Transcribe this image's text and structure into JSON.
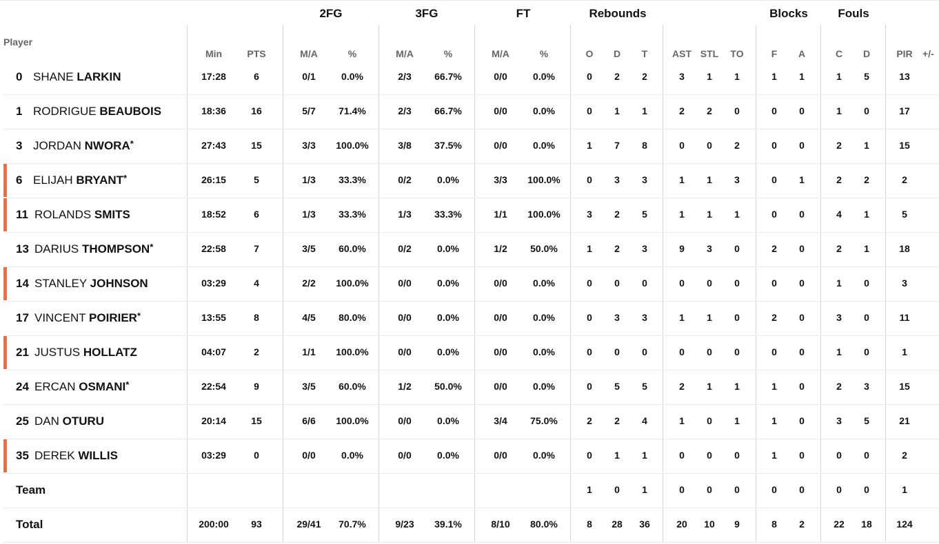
{
  "header": {
    "groups": {
      "twofg": "2FG",
      "threefg": "3FG",
      "ft": "FT",
      "rebounds": "Rebounds",
      "blocks": "Blocks",
      "fouls": "Fouls"
    },
    "player": "Player",
    "cols": {
      "min": "Min",
      "pts": "PTS",
      "twofg_ma": "M/A",
      "twofg_pct": "%",
      "threefg_ma": "M/A",
      "threefg_pct": "%",
      "ft_ma": "M/A",
      "ft_pct": "%",
      "reb_o": "O",
      "reb_d": "D",
      "reb_t": "T",
      "ast": "AST",
      "stl": "STL",
      "to": "TO",
      "blk_f": "F",
      "blk_a": "A",
      "foul_c": "C",
      "foul_d": "D",
      "pir": "PIR",
      "pm": "+/-"
    }
  },
  "accent_color": "#f26b38",
  "players": [
    {
      "num": "0",
      "first": "SHANE",
      "last": "LARKIN",
      "star": "",
      "flag": false,
      "min": "17:28",
      "pts": "6",
      "twofg_ma": "0/1",
      "twofg_pct": "0.0%",
      "threefg_ma": "2/3",
      "threefg_pct": "66.7%",
      "ft_ma": "0/0",
      "ft_pct": "0.0%",
      "reb_o": "0",
      "reb_d": "2",
      "reb_t": "2",
      "ast": "3",
      "stl": "1",
      "to": "1",
      "blk_f": "1",
      "blk_a": "1",
      "foul_c": "1",
      "foul_d": "5",
      "pir": "13"
    },
    {
      "num": "1",
      "first": "RODRIGUE",
      "last": "BEAUBOIS",
      "star": "",
      "flag": false,
      "min": "18:36",
      "pts": "16",
      "twofg_ma": "5/7",
      "twofg_pct": "71.4%",
      "threefg_ma": "2/3",
      "threefg_pct": "66.7%",
      "ft_ma": "0/0",
      "ft_pct": "0.0%",
      "reb_o": "0",
      "reb_d": "1",
      "reb_t": "1",
      "ast": "2",
      "stl": "2",
      "to": "0",
      "blk_f": "0",
      "blk_a": "0",
      "foul_c": "1",
      "foul_d": "0",
      "pir": "17"
    },
    {
      "num": "3",
      "first": "JORDAN",
      "last": "NWORA",
      "star": "*",
      "flag": false,
      "min": "27:43",
      "pts": "15",
      "twofg_ma": "3/3",
      "twofg_pct": "100.0%",
      "threefg_ma": "3/8",
      "threefg_pct": "37.5%",
      "ft_ma": "0/0",
      "ft_pct": "0.0%",
      "reb_o": "1",
      "reb_d": "7",
      "reb_t": "8",
      "ast": "0",
      "stl": "0",
      "to": "2",
      "blk_f": "0",
      "blk_a": "0",
      "foul_c": "2",
      "foul_d": "1",
      "pir": "15"
    },
    {
      "num": "6",
      "first": "ELIJAH",
      "last": "BRYANT",
      "star": "*",
      "flag": true,
      "min": "26:15",
      "pts": "5",
      "twofg_ma": "1/3",
      "twofg_pct": "33.3%",
      "threefg_ma": "0/2",
      "threefg_pct": "0.0%",
      "ft_ma": "3/3",
      "ft_pct": "100.0%",
      "reb_o": "0",
      "reb_d": "3",
      "reb_t": "3",
      "ast": "1",
      "stl": "1",
      "to": "3",
      "blk_f": "0",
      "blk_a": "1",
      "foul_c": "2",
      "foul_d": "2",
      "pir": "2"
    },
    {
      "num": "11",
      "first": "ROLANDS",
      "last": "SMITS",
      "star": "",
      "flag": true,
      "min": "18:52",
      "pts": "6",
      "twofg_ma": "1/3",
      "twofg_pct": "33.3%",
      "threefg_ma": "1/3",
      "threefg_pct": "33.3%",
      "ft_ma": "1/1",
      "ft_pct": "100.0%",
      "reb_o": "3",
      "reb_d": "2",
      "reb_t": "5",
      "ast": "1",
      "stl": "1",
      "to": "1",
      "blk_f": "0",
      "blk_a": "0",
      "foul_c": "4",
      "foul_d": "1",
      "pir": "5"
    },
    {
      "num": "13",
      "first": "DARIUS",
      "last": "THOMPSON",
      "star": "*",
      "flag": false,
      "min": "22:58",
      "pts": "7",
      "twofg_ma": "3/5",
      "twofg_pct": "60.0%",
      "threefg_ma": "0/2",
      "threefg_pct": "0.0%",
      "ft_ma": "1/2",
      "ft_pct": "50.0%",
      "reb_o": "1",
      "reb_d": "2",
      "reb_t": "3",
      "ast": "9",
      "stl": "3",
      "to": "0",
      "blk_f": "2",
      "blk_a": "0",
      "foul_c": "2",
      "foul_d": "1",
      "pir": "18"
    },
    {
      "num": "14",
      "first": "STANLEY",
      "last": "JOHNSON",
      "star": "",
      "flag": true,
      "min": "03:29",
      "pts": "4",
      "twofg_ma": "2/2",
      "twofg_pct": "100.0%",
      "threefg_ma": "0/0",
      "threefg_pct": "0.0%",
      "ft_ma": "0/0",
      "ft_pct": "0.0%",
      "reb_o": "0",
      "reb_d": "0",
      "reb_t": "0",
      "ast": "0",
      "stl": "0",
      "to": "0",
      "blk_f": "0",
      "blk_a": "0",
      "foul_c": "1",
      "foul_d": "0",
      "pir": "3"
    },
    {
      "num": "17",
      "first": "VINCENT",
      "last": "POIRIER",
      "star": "*",
      "flag": false,
      "min": "13:55",
      "pts": "8",
      "twofg_ma": "4/5",
      "twofg_pct": "80.0%",
      "threefg_ma": "0/0",
      "threefg_pct": "0.0%",
      "ft_ma": "0/0",
      "ft_pct": "0.0%",
      "reb_o": "0",
      "reb_d": "3",
      "reb_t": "3",
      "ast": "1",
      "stl": "1",
      "to": "0",
      "blk_f": "2",
      "blk_a": "0",
      "foul_c": "3",
      "foul_d": "0",
      "pir": "11"
    },
    {
      "num": "21",
      "first": "JUSTUS",
      "last": "HOLLATZ",
      "star": "",
      "flag": true,
      "min": "04:07",
      "pts": "2",
      "twofg_ma": "1/1",
      "twofg_pct": "100.0%",
      "threefg_ma": "0/0",
      "threefg_pct": "0.0%",
      "ft_ma": "0/0",
      "ft_pct": "0.0%",
      "reb_o": "0",
      "reb_d": "0",
      "reb_t": "0",
      "ast": "0",
      "stl": "0",
      "to": "0",
      "blk_f": "0",
      "blk_a": "0",
      "foul_c": "1",
      "foul_d": "0",
      "pir": "1"
    },
    {
      "num": "24",
      "first": "ERCAN",
      "last": "OSMANI",
      "star": "*",
      "flag": false,
      "min": "22:54",
      "pts": "9",
      "twofg_ma": "3/5",
      "twofg_pct": "60.0%",
      "threefg_ma": "1/2",
      "threefg_pct": "50.0%",
      "ft_ma": "0/0",
      "ft_pct": "0.0%",
      "reb_o": "0",
      "reb_d": "5",
      "reb_t": "5",
      "ast": "2",
      "stl": "1",
      "to": "1",
      "blk_f": "1",
      "blk_a": "0",
      "foul_c": "2",
      "foul_d": "3",
      "pir": "15"
    },
    {
      "num": "25",
      "first": "DAN",
      "last": "OTURU",
      "star": "",
      "flag": false,
      "min": "20:14",
      "pts": "15",
      "twofg_ma": "6/6",
      "twofg_pct": "100.0%",
      "threefg_ma": "0/0",
      "threefg_pct": "0.0%",
      "ft_ma": "3/4",
      "ft_pct": "75.0%",
      "reb_o": "2",
      "reb_d": "2",
      "reb_t": "4",
      "ast": "1",
      "stl": "0",
      "to": "1",
      "blk_f": "1",
      "blk_a": "0",
      "foul_c": "3",
      "foul_d": "5",
      "pir": "21"
    },
    {
      "num": "35",
      "first": "DEREK",
      "last": "WILLIS",
      "star": "",
      "flag": true,
      "min": "03:29",
      "pts": "0",
      "twofg_ma": "0/0",
      "twofg_pct": "0.0%",
      "threefg_ma": "0/0",
      "threefg_pct": "0.0%",
      "ft_ma": "0/0",
      "ft_pct": "0.0%",
      "reb_o": "0",
      "reb_d": "1",
      "reb_t": "1",
      "ast": "0",
      "stl": "0",
      "to": "0",
      "blk_f": "1",
      "blk_a": "0",
      "foul_c": "0",
      "foul_d": "0",
      "pir": "2"
    }
  ],
  "team": {
    "label": "Team",
    "min": "",
    "pts": "",
    "twofg_ma": "",
    "twofg_pct": "",
    "threefg_ma": "",
    "threefg_pct": "",
    "ft_ma": "",
    "ft_pct": "",
    "reb_o": "1",
    "reb_d": "0",
    "reb_t": "1",
    "ast": "0",
    "stl": "0",
    "to": "0",
    "blk_f": "0",
    "blk_a": "0",
    "foul_c": "0",
    "foul_d": "0",
    "pir": "1"
  },
  "total": {
    "label": "Total",
    "min": "200:00",
    "pts": "93",
    "twofg_ma": "29/41",
    "twofg_pct": "70.7%",
    "threefg_ma": "9/23",
    "threefg_pct": "39.1%",
    "ft_ma": "8/10",
    "ft_pct": "80.0%",
    "reb_o": "8",
    "reb_d": "28",
    "reb_t": "36",
    "ast": "20",
    "stl": "10",
    "to": "9",
    "blk_f": "8",
    "blk_a": "2",
    "foul_c": "22",
    "foul_d": "18",
    "pir": "124"
  }
}
